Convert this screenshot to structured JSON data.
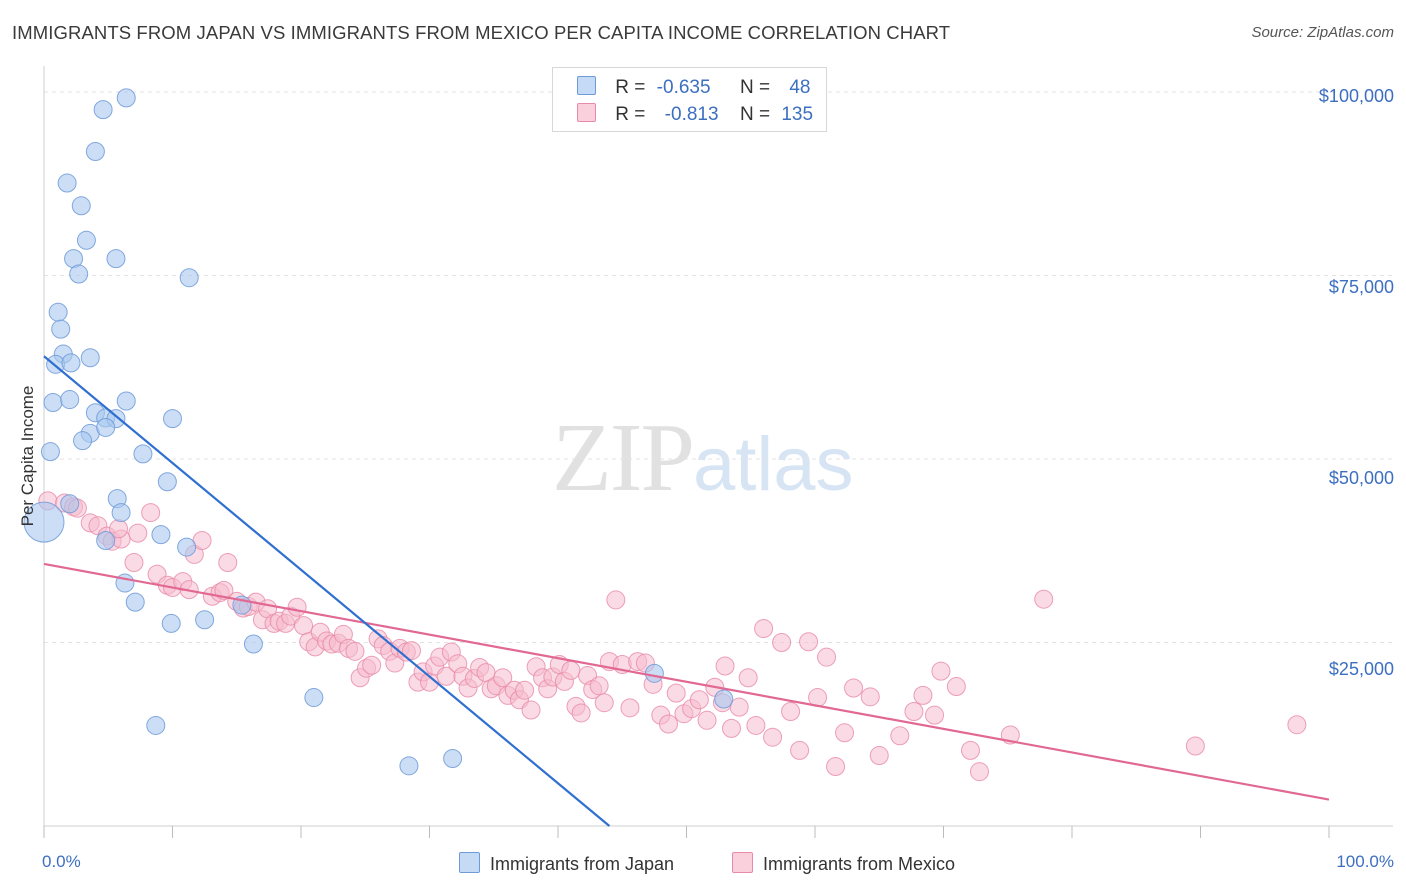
{
  "header": {
    "title": "IMMIGRANTS FROM JAPAN VS IMMIGRANTS FROM MEXICO PER CAPITA INCOME CORRELATION CHART",
    "source": "Source: ZipAtlas.com"
  },
  "watermark": {
    "zip": "ZIP",
    "atlas": "atlas"
  },
  "legend": {
    "japan": {
      "r_label": "R =",
      "r_value": "-0.635",
      "n_label": "N =",
      "n_value": "48"
    },
    "mexico": {
      "r_label": "R =",
      "r_value": "-0.813",
      "n_label": "N =",
      "n_value": "135"
    }
  },
  "colors": {
    "japan_fill": "#a9c8ef",
    "japan_stroke": "#6f9ad8",
    "japan_line": "#2f6fcf",
    "mexico_fill": "#f5bccd",
    "mexico_stroke": "#e98aa8",
    "mexico_line": "#e26894",
    "tick_text": "#3d6fc0",
    "grid": "#e3e3e3"
  },
  "chart_data": {
    "type": "scatter",
    "title": "IMMIGRANTS FROM JAPAN VS IMMIGRANTS FROM MEXICO PER CAPITA INCOME CORRELATION CHART",
    "xlabel": "",
    "ylabel": "Per Capita Income",
    "xlim": [
      0,
      100
    ],
    "ylim": [
      0,
      103000
    ],
    "x_tick_labels": [
      "0.0%",
      "100.0%"
    ],
    "y_ticks": [
      25000,
      50000,
      75000,
      100000
    ],
    "y_tick_labels": [
      "$25,000",
      "$50,000",
      "$75,000",
      "$100,000"
    ],
    "grid": true,
    "legend_position": "top-center",
    "series": [
      {
        "name": "Immigrants from Japan",
        "r": -0.635,
        "n": 48,
        "trend": {
          "x": [
            0,
            44.0
          ],
          "y": [
            64000,
            0
          ]
        },
        "points": [
          [
            6.4,
            99200
          ],
          [
            4.6,
            97600
          ],
          [
            4.0,
            91900
          ],
          [
            1.8,
            87600
          ],
          [
            2.9,
            84500
          ],
          [
            3.3,
            79800
          ],
          [
            2.3,
            77300
          ],
          [
            5.6,
            77300
          ],
          [
            2.7,
            75200
          ],
          [
            11.3,
            74700
          ],
          [
            1.1,
            70000
          ],
          [
            1.3,
            67700
          ],
          [
            1.5,
            64300
          ],
          [
            3.6,
            63800
          ],
          [
            0.9,
            62900
          ],
          [
            2.1,
            63100
          ],
          [
            0.7,
            57700
          ],
          [
            2.0,
            58100
          ],
          [
            6.4,
            57900
          ],
          [
            4.0,
            56300
          ],
          [
            4.8,
            55600
          ],
          [
            5.6,
            55500
          ],
          [
            10.0,
            55500
          ],
          [
            3.6,
            53500
          ],
          [
            4.8,
            54300
          ],
          [
            3.0,
            52500
          ],
          [
            0.5,
            51000
          ],
          [
            7.7,
            50700
          ],
          [
            9.6,
            46900
          ],
          [
            5.7,
            44600
          ],
          [
            6.0,
            42700
          ],
          [
            2.0,
            43900
          ],
          [
            0.0,
            41400
          ],
          [
            9.1,
            39700
          ],
          [
            4.8,
            38900
          ],
          [
            11.1,
            38000
          ],
          [
            6.3,
            33100
          ],
          [
            7.1,
            30500
          ],
          [
            15.4,
            30100
          ],
          [
            9.9,
            27600
          ],
          [
            12.5,
            28100
          ],
          [
            16.3,
            24800
          ],
          [
            21.0,
            17500
          ],
          [
            8.7,
            13700
          ],
          [
            47.5,
            20800
          ],
          [
            52.9,
            17300
          ],
          [
            28.4,
            8200
          ],
          [
            31.8,
            9200
          ]
        ]
      },
      {
        "name": "Immigrants from Mexico",
        "r": -0.813,
        "n": 135,
        "trend": {
          "x": [
            0,
            100
          ],
          "y": [
            35700,
            3600
          ]
        },
        "points": [
          [
            0.3,
            44300
          ],
          [
            1.6,
            44000
          ],
          [
            2.3,
            43500
          ],
          [
            3.6,
            41300
          ],
          [
            4.2,
            40900
          ],
          [
            2.6,
            43300
          ],
          [
            4.9,
            39500
          ],
          [
            5.3,
            38800
          ],
          [
            6.0,
            39100
          ],
          [
            7.3,
            39900
          ],
          [
            8.3,
            42700
          ],
          [
            5.8,
            40500
          ],
          [
            7.0,
            35900
          ],
          [
            8.8,
            34300
          ],
          [
            9.6,
            32800
          ],
          [
            10.0,
            32500
          ],
          [
            10.8,
            33300
          ],
          [
            11.3,
            32200
          ],
          [
            11.7,
            37000
          ],
          [
            12.3,
            38900
          ],
          [
            13.1,
            31300
          ],
          [
            13.7,
            31800
          ],
          [
            14.0,
            32100
          ],
          [
            14.3,
            35900
          ],
          [
            15.0,
            30600
          ],
          [
            15.5,
            29700
          ],
          [
            15.9,
            29900
          ],
          [
            16.5,
            30500
          ],
          [
            17.0,
            28100
          ],
          [
            17.4,
            29600
          ],
          [
            17.9,
            27600
          ],
          [
            18.3,
            27900
          ],
          [
            18.8,
            27600
          ],
          [
            19.2,
            28600
          ],
          [
            19.7,
            29800
          ],
          [
            20.2,
            27300
          ],
          [
            20.6,
            25100
          ],
          [
            21.1,
            24400
          ],
          [
            21.5,
            26400
          ],
          [
            22.0,
            25200
          ],
          [
            22.4,
            24800
          ],
          [
            22.9,
            24900
          ],
          [
            23.3,
            26100
          ],
          [
            23.7,
            24200
          ],
          [
            24.2,
            23800
          ],
          [
            24.6,
            20200
          ],
          [
            25.1,
            21500
          ],
          [
            25.5,
            21900
          ],
          [
            26.0,
            25500
          ],
          [
            26.4,
            24600
          ],
          [
            26.9,
            23800
          ],
          [
            27.3,
            22200
          ],
          [
            27.7,
            24200
          ],
          [
            28.2,
            23700
          ],
          [
            28.6,
            23900
          ],
          [
            29.1,
            19600
          ],
          [
            29.5,
            21000
          ],
          [
            30.0,
            19600
          ],
          [
            30.4,
            21800
          ],
          [
            30.8,
            23000
          ],
          [
            31.3,
            20400
          ],
          [
            31.7,
            23700
          ],
          [
            32.2,
            22100
          ],
          [
            32.6,
            20400
          ],
          [
            33.0,
            18800
          ],
          [
            33.5,
            20100
          ],
          [
            33.9,
            21600
          ],
          [
            34.4,
            20900
          ],
          [
            34.8,
            18700
          ],
          [
            35.2,
            19100
          ],
          [
            35.7,
            20200
          ],
          [
            36.1,
            17800
          ],
          [
            36.6,
            18500
          ],
          [
            37.0,
            17200
          ],
          [
            37.4,
            18500
          ],
          [
            37.9,
            15800
          ],
          [
            38.3,
            21700
          ],
          [
            38.8,
            20200
          ],
          [
            39.2,
            18700
          ],
          [
            39.6,
            20300
          ],
          [
            40.1,
            22000
          ],
          [
            40.5,
            19700
          ],
          [
            41.0,
            21200
          ],
          [
            41.4,
            16300
          ],
          [
            41.8,
            15400
          ],
          [
            42.3,
            20500
          ],
          [
            42.7,
            18600
          ],
          [
            43.2,
            19100
          ],
          [
            43.6,
            16800
          ],
          [
            44.0,
            22400
          ],
          [
            44.5,
            30800
          ],
          [
            45.0,
            22000
          ],
          [
            45.6,
            16100
          ],
          [
            46.2,
            22400
          ],
          [
            46.8,
            22200
          ],
          [
            47.4,
            19300
          ],
          [
            48.0,
            15100
          ],
          [
            48.6,
            13900
          ],
          [
            49.2,
            18100
          ],
          [
            49.8,
            15300
          ],
          [
            50.4,
            16000
          ],
          [
            51.0,
            17200
          ],
          [
            51.6,
            14400
          ],
          [
            52.2,
            18900
          ],
          [
            52.8,
            16800
          ],
          [
            53.5,
            13300
          ],
          [
            54.1,
            16200
          ],
          [
            54.8,
            20200
          ],
          [
            55.4,
            13700
          ],
          [
            56.0,
            26900
          ],
          [
            56.7,
            12100
          ],
          [
            57.4,
            25000
          ],
          [
            58.1,
            15600
          ],
          [
            58.8,
            10300
          ],
          [
            59.5,
            25100
          ],
          [
            60.2,
            17500
          ],
          [
            60.9,
            23000
          ],
          [
            61.6,
            8100
          ],
          [
            62.3,
            12700
          ],
          [
            63.0,
            18800
          ],
          [
            64.3,
            17600
          ],
          [
            65.0,
            9600
          ],
          [
            66.6,
            12300
          ],
          [
            68.4,
            17800
          ],
          [
            69.3,
            15100
          ],
          [
            69.8,
            21100
          ],
          [
            72.1,
            10300
          ],
          [
            72.8,
            7400
          ],
          [
            75.2,
            12400
          ],
          [
            77.8,
            30900
          ],
          [
            89.6,
            10900
          ],
          [
            97.5,
            13800
          ],
          [
            67.7,
            15600
          ],
          [
            71.0,
            19000
          ],
          [
            53.0,
            21800
          ]
        ]
      }
    ]
  },
  "bottom_legend": {
    "japan_label": "Immigrants from Japan",
    "mexico_label": "Immigrants from Mexico"
  }
}
